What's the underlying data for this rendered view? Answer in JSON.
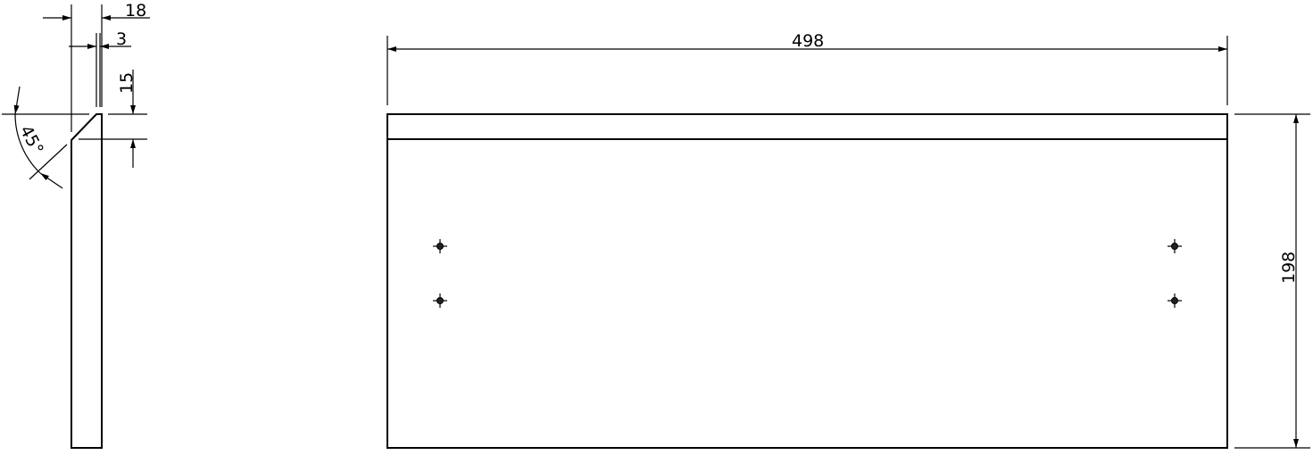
{
  "side_view": {
    "dim_thickness": "18",
    "dim_lip": "3",
    "dim_chamfer_height": "15",
    "dim_angle": "45°"
  },
  "front_view": {
    "dim_width": "498",
    "dim_height": "198",
    "holes": 4
  }
}
